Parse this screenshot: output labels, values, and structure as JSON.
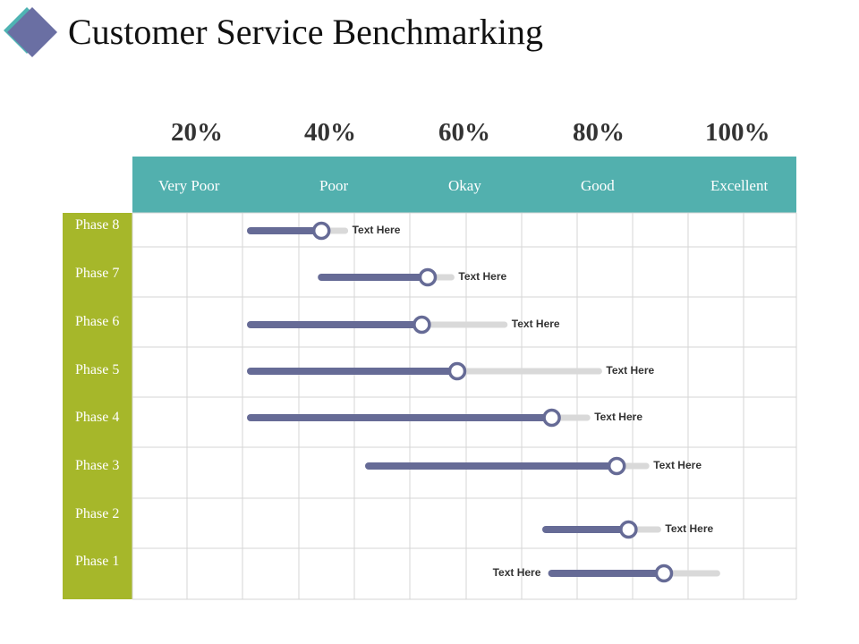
{
  "title": "Customer Service Benchmarking",
  "logo_icon": "diamond-icon",
  "colors": {
    "header_teal": "#52b0ae",
    "phase_green": "#a6b72a",
    "bar_fill": "#666b96",
    "bar_track": "#d9d9d9",
    "logo_back": "#4fb3b3",
    "logo_front": "#6a6fa3"
  },
  "percentages": [
    "20%",
    "40%",
    "60%",
    "80%",
    "100%"
  ],
  "ratings": [
    "Very Poor",
    "Poor",
    "Okay",
    "Good",
    "Excellent"
  ],
  "phases": [
    {
      "name": "Phase 8",
      "start": 30,
      "value": 42,
      "end": 46,
      "label": "Text Here"
    },
    {
      "name": "Phase 7",
      "start": 42,
      "value": 60,
      "end": 64,
      "label": "Text Here"
    },
    {
      "name": "Phase 6",
      "start": 30,
      "value": 59,
      "end": 73,
      "label": "Text Here"
    },
    {
      "name": "Phase 5",
      "start": 30,
      "value": 65,
      "end": 89,
      "label": "Text Here"
    },
    {
      "name": "Phase 4",
      "start": 30,
      "value": 81,
      "end": 87,
      "label": "Text Here"
    },
    {
      "name": "Phase 3",
      "start": 50,
      "value": 92,
      "end": 97,
      "label": "Text Here"
    },
    {
      "name": "Phase 2",
      "start": 80,
      "value": 94,
      "end": 99,
      "label": "Text Here"
    },
    {
      "name": "Phase 1",
      "start": 81,
      "value": 100,
      "end": 109,
      "label": "Text Here"
    }
  ]
}
